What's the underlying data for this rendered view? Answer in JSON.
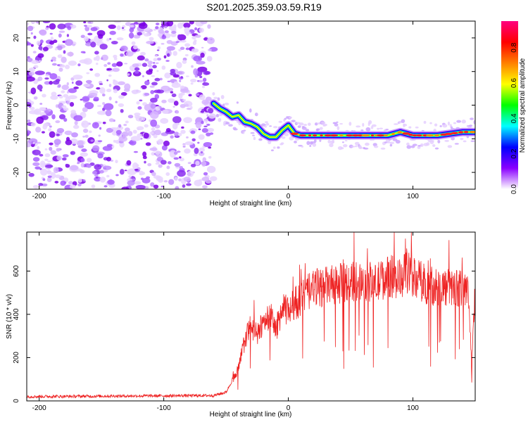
{
  "title": "S201.2025.359.03.59.R19",
  "chart_data": [
    {
      "type": "heatmap",
      "xlabel": "Height of straight line (km)",
      "ylabel": "Frequency (Hz)",
      "xlim": [
        -210,
        150
      ],
      "ylim": [
        -25,
        25
      ],
      "xticks": [
        -200,
        -100,
        0,
        100
      ],
      "yticks": [
        -20,
        -10,
        0,
        10,
        20
      ],
      "noise_region_x": [
        -210,
        -60
      ],
      "signal_trace": {
        "x": [
          -60,
          -55,
          -50,
          -45,
          -40,
          -35,
          -30,
          -25,
          -20,
          -15,
          -10,
          -5,
          0,
          5,
          10,
          20,
          30,
          40,
          50,
          60,
          70,
          80,
          90,
          100,
          110,
          120,
          130,
          140,
          150
        ],
        "freq": [
          0.5,
          -1,
          -2,
          -3.5,
          -3,
          -5,
          -5.5,
          -6.5,
          -8.5,
          -9.5,
          -9.5,
          -7.5,
          -6,
          -8.5,
          -9,
          -9,
          -9,
          -9,
          -9,
          -9,
          -9,
          -9,
          -8,
          -9,
          -9,
          -9,
          -8.5,
          -8,
          -8
        ]
      },
      "colorbar": {
        "label": "Normalized spectral amplitude",
        "range": [
          0,
          0.95
        ],
        "ticks": [
          "0.0",
          "0.2",
          "0.4",
          "0.6",
          "0.8"
        ],
        "colors": [
          "#ffffff",
          "#8a00ff",
          "#0000ff",
          "#00ffff",
          "#00ff00",
          "#ffff00",
          "#ff8000",
          "#ff0000",
          "#ff0080"
        ]
      }
    },
    {
      "type": "line",
      "xlabel": "Height of straight line (km)",
      "ylabel": "SNR (10 * v/v)",
      "xlim": [
        -210,
        150
      ],
      "ylim": [
        0,
        780
      ],
      "xticks": [
        -200,
        -100,
        0,
        100
      ],
      "yticks": [
        0,
        200,
        400,
        600
      ],
      "color": "#ee2222",
      "series": [
        {
          "name": "SNR",
          "x": [
            -210,
            -60,
            -50,
            -40,
            -35,
            -30,
            -25,
            -20,
            -15,
            -10,
            -5,
            0,
            5,
            10,
            20,
            30,
            40,
            50,
            60,
            70,
            80,
            90,
            95,
            100,
            110,
            120,
            130,
            140,
            145,
            147,
            150
          ],
          "y": [
            20,
            25,
            40,
            150,
            280,
            350,
            300,
            370,
            400,
            330,
            420,
            420,
            450,
            470,
            520,
            530,
            540,
            550,
            560,
            540,
            580,
            560,
            600,
            580,
            540,
            530,
            520,
            530,
            480,
            160,
            500
          ]
        }
      ]
    }
  ]
}
